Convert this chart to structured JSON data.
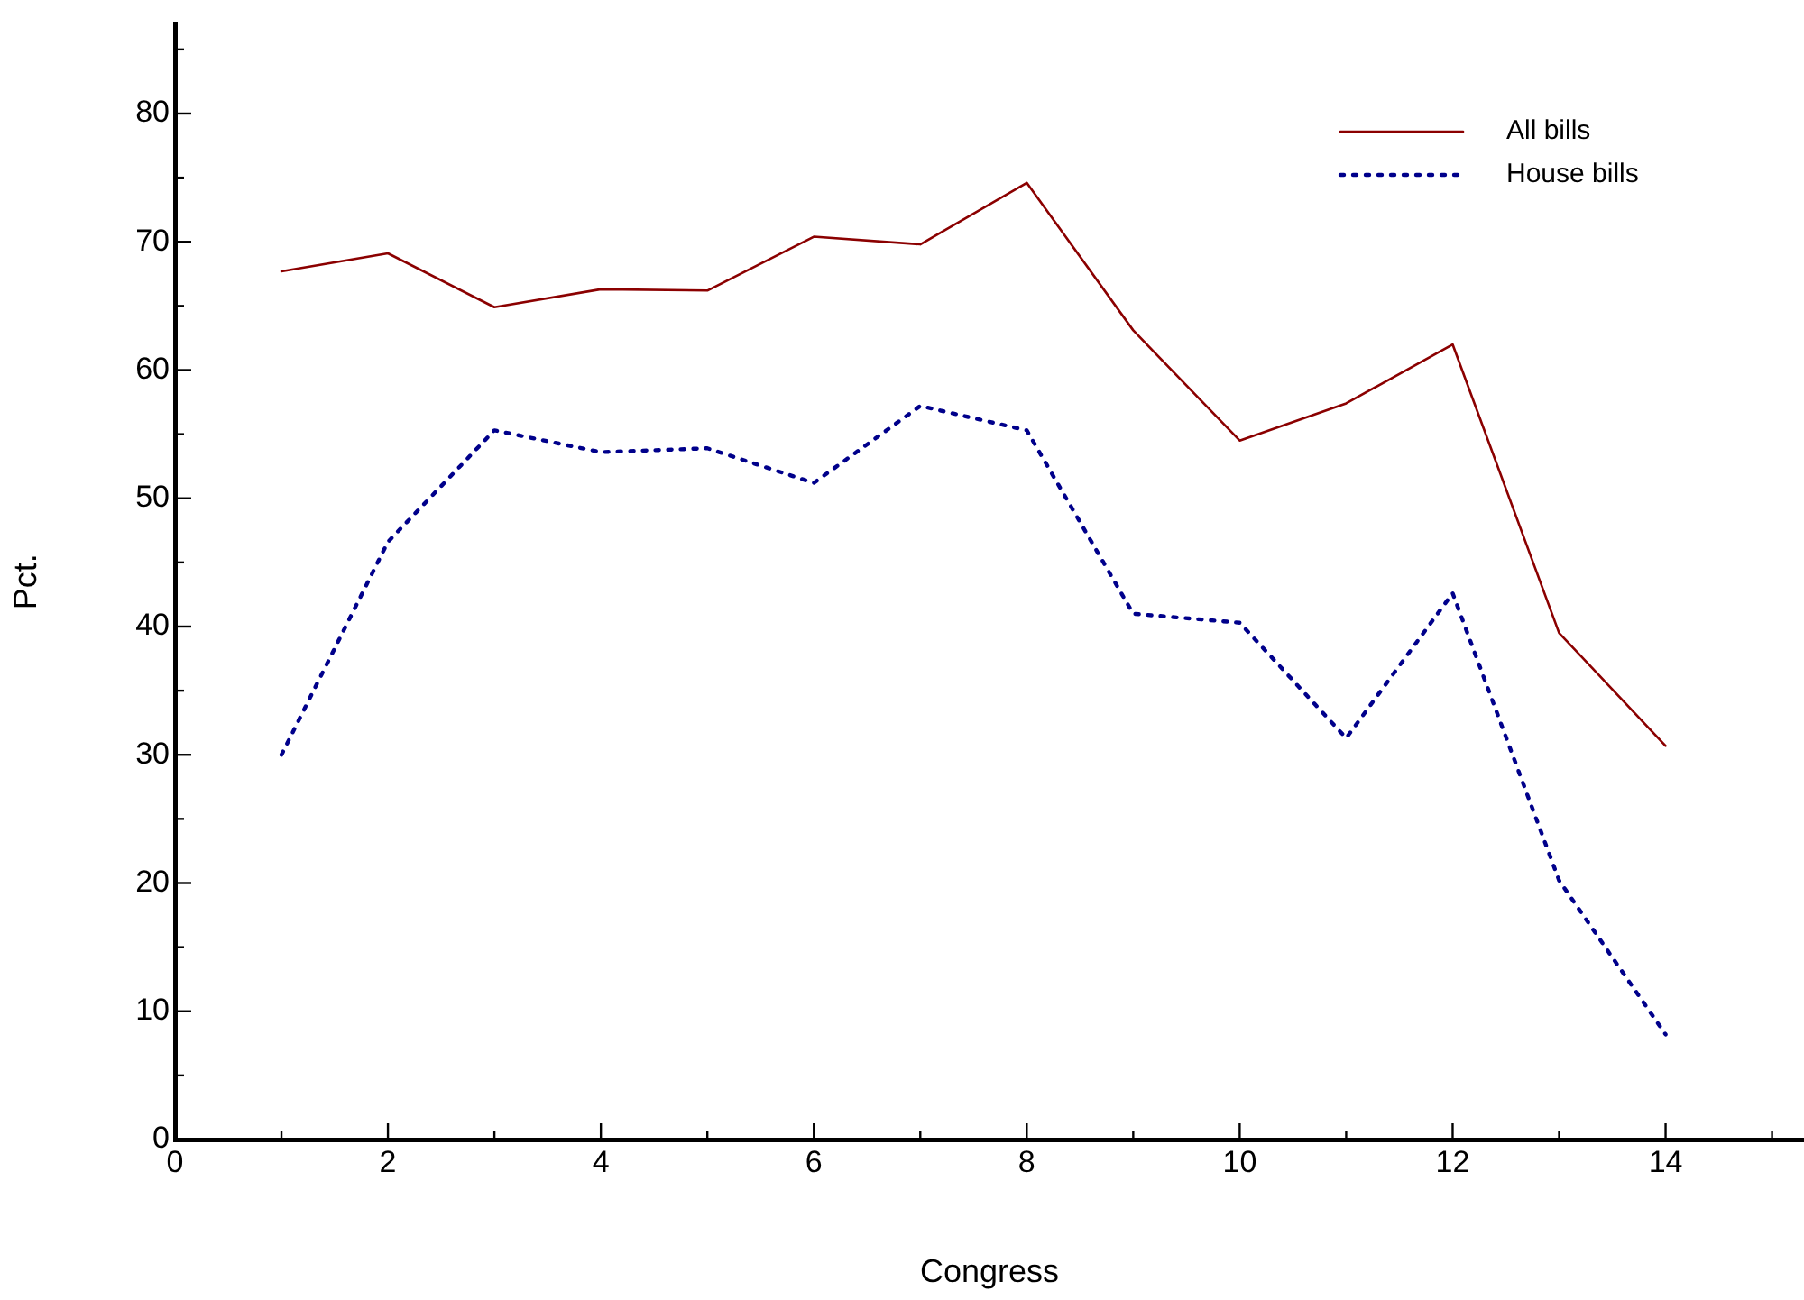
{
  "chart_data": {
    "type": "line",
    "xlabel": "Congress",
    "ylabel": "Pct.",
    "x": [
      1,
      2,
      3,
      4,
      5,
      6,
      7,
      8,
      9,
      10,
      11,
      12,
      13,
      14
    ],
    "series": [
      {
        "name": "All bills",
        "color": "#8b0000",
        "line_style": "solid",
        "values": [
          67.7,
          69.1,
          64.9,
          66.3,
          66.2,
          70.4,
          69.8,
          74.6,
          63.1,
          54.5,
          57.4,
          62.0,
          39.5,
          30.7
        ]
      },
      {
        "name": "House bills",
        "color": "#00008b",
        "line_style": "dotted",
        "values": [
          30.0,
          46.6,
          55.3,
          53.6,
          53.9,
          51.2,
          57.2,
          55.3,
          41.0,
          40.3,
          31.3,
          42.6,
          20.2,
          8.2
        ]
      }
    ],
    "xlim": [
      0,
      15.3
    ],
    "ylim": [
      0,
      87
    ],
    "xticks": [
      0,
      {
        "value": 1,
        "label": null
      },
      2,
      {
        "value": 3,
        "label": null
      },
      4,
      {
        "value": 5,
        "label": null
      },
      6,
      {
        "value": 7,
        "label": null
      },
      8,
      {
        "value": 9,
        "label": null
      },
      10,
      {
        "value": 11,
        "label": null
      },
      12,
      {
        "value": 13,
        "label": null
      },
      14,
      {
        "value": 15,
        "label": null
      }
    ],
    "yticks": [
      0,
      {
        "value": 5,
        "label": null
      },
      10,
      {
        "value": 15,
        "label": null
      },
      20,
      {
        "value": 25,
        "label": null
      },
      30,
      {
        "value": 35,
        "label": null
      },
      40,
      {
        "value": 45,
        "label": null
      },
      50,
      {
        "value": 55,
        "label": null
      },
      60,
      {
        "value": 65,
        "label": null
      },
      70,
      {
        "value": 75,
        "label": null
      },
      80,
      {
        "value": 85,
        "label": null
      }
    ],
    "grid": false,
    "legend": "top right",
    "marker": "none"
  }
}
